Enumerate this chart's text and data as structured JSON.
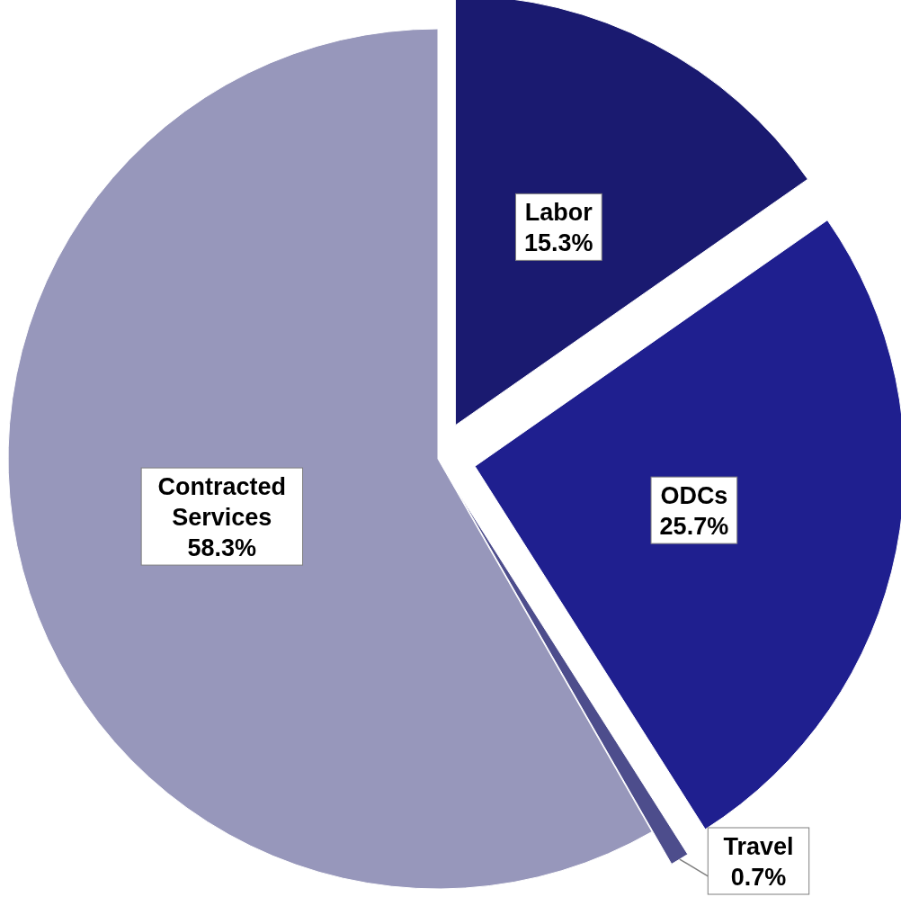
{
  "chart_data": {
    "type": "pie",
    "categories": [
      "Labor",
      "ODCs",
      "Travel",
      "Contracted Services"
    ],
    "values": [
      15.3,
      25.7,
      0.7,
      58.3
    ],
    "colors": [
      "#1a1a70",
      "#1f1f8f",
      "#4d4d8c",
      "#9797bb"
    ],
    "value_labels": [
      "15.3%",
      "25.7%",
      "0.7%",
      "58.3%"
    ]
  }
}
